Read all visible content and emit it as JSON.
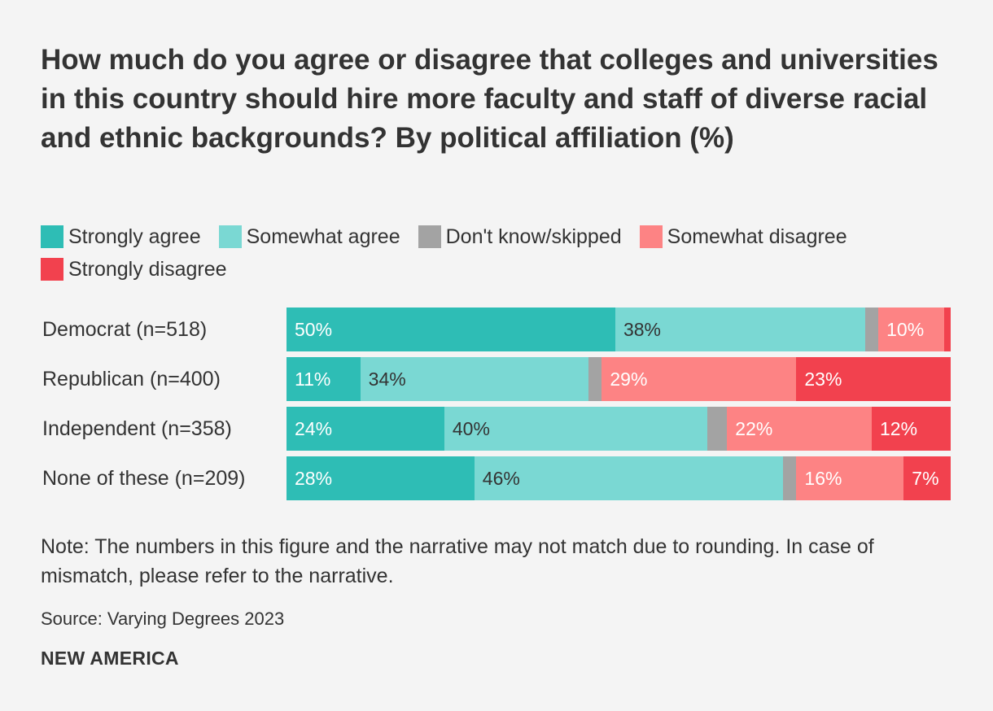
{
  "title": "How much do you agree or disagree that colleges and universities in this country should hire more faculty and staff of diverse racial and ethnic backgrounds? By political affiliation (%)",
  "note": "Note: The numbers in this figure and the narrative may not match due to rounding. In case of mismatch, please refer to the narrative.",
  "source": "Source: Varying Degrees 2023",
  "brand": "NEW AMERICA",
  "chart_data": {
    "type": "bar",
    "orientation": "horizontal",
    "stacked": true,
    "title": "How much do you agree or disagree that colleges and universities in this country should hire more faculty and staff of diverse racial and ethnic backgrounds? By political affiliation (%)",
    "categories": [
      "Democrat (n=518)",
      "Republican (n=400)",
      "Independent (n=358)",
      "None of these (n=209)"
    ],
    "series": [
      {
        "name": "Strongly agree",
        "color": "#2ebdb5",
        "label_color": "#ffffff",
        "values": [
          50,
          11,
          24,
          28
        ],
        "labels": [
          "50%",
          "11%",
          "24%",
          "28%"
        ]
      },
      {
        "name": "Somewhat agree",
        "color": "#7ad8d3",
        "label_color": "#333333",
        "values": [
          38,
          34,
          40,
          46
        ],
        "labels": [
          "38%",
          "34%",
          "40%",
          "46%"
        ]
      },
      {
        "name": "Don't know/skipped",
        "color": "#a3a3a3",
        "label_color": "#333333",
        "values": [
          2,
          2,
          3,
          2
        ],
        "labels": [
          "",
          "",
          "",
          ""
        ]
      },
      {
        "name": "Somewhat disagree",
        "color": "#fd8384",
        "label_color": "#ffffff",
        "values": [
          10,
          29,
          22,
          16
        ],
        "labels": [
          "10%",
          "29%",
          "22%",
          "16%"
        ]
      },
      {
        "name": "Strongly disagree",
        "color": "#f2414e",
        "label_color": "#ffffff",
        "values": [
          1,
          23,
          12,
          7
        ],
        "labels": [
          "",
          "23%",
          "12%",
          "7%"
        ]
      }
    ],
    "xlim": [
      0,
      100
    ],
    "legend_position": "top"
  }
}
